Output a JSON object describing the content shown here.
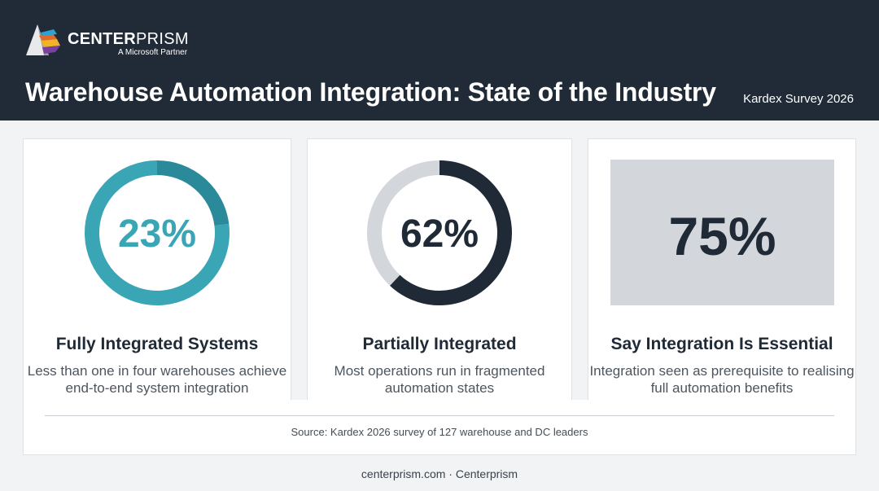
{
  "brand": {
    "name_bold": "CENTER",
    "name_thin": "PRISM",
    "tagline": "A Microsoft Partner",
    "logo_icon": "prism-logo-icon"
  },
  "header": {
    "title": "Warehouse Automation Integration: State of the Industry",
    "subtitle": "Kardex Survey 2026"
  },
  "stats": [
    {
      "value_text": "23%",
      "value": 23,
      "title": "Fully Integrated Systems",
      "description": "Less than one in four warehouses achieve end-to-end system integration",
      "color": "#3aa5b5"
    },
    {
      "value_text": "62%",
      "value": 62,
      "title": "Partially Integrated",
      "description": "Most operations run in fragmented automation states",
      "color": "#1f2a36"
    },
    {
      "value_text": "75%",
      "value": 75,
      "title": "Say Integration Is Essential",
      "description": "Integration seen as prerequisite to realising full automation benefits",
      "color": "#1f2a36"
    }
  ],
  "source": "Source: Kardex 2026 survey of 127 warehouse and DC leaders",
  "footer": "centerprism.com · Centerprism",
  "colors": {
    "header_bg": "#202b37",
    "accent_teal": "#3aa5b5",
    "accent_teal_dark": "#2a8a99",
    "ring_track": "#d3d7dc",
    "dark": "#1f2a36"
  }
}
